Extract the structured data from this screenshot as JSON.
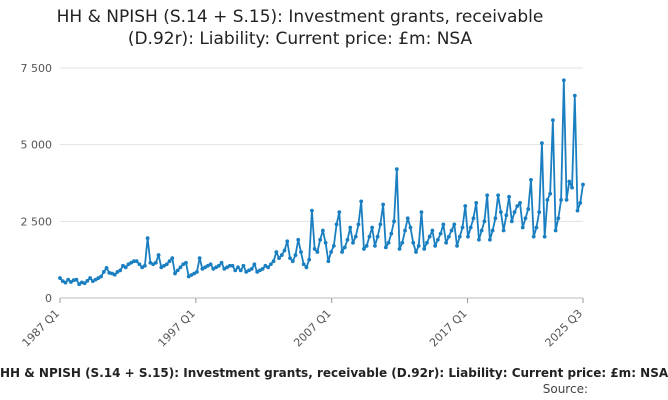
{
  "chart_data": {
    "type": "line",
    "title_lines": [
      "HH & NPISH (S.14 + S.15): Investment grants, receivable",
      "(D.92r): Liability: Current price: £m: NSA"
    ],
    "caption": "HH & NPISH (S.14 + S.15): Investment grants, receivable (D.92r): Liability: Current price: £m: NSA",
    "source_label": "Source:",
    "xlabel": "",
    "ylabel": "",
    "ylim": [
      0,
      7500
    ],
    "yticks": [
      {
        "value": 0,
        "label": "0"
      },
      {
        "value": 2500,
        "label": "2 500"
      },
      {
        "value": 5000,
        "label": "5 000"
      },
      {
        "value": 7500,
        "label": "7 500"
      }
    ],
    "xticks": [
      "1987 Q1",
      "1997 Q1",
      "2007 Q1",
      "2017 Q1",
      "2025 Q3"
    ],
    "grid": true,
    "color": "#1a7fc1",
    "x_start": "1987 Q1",
    "x_end": "2025 Q3",
    "series": [
      {
        "values": [
          650,
          550,
          500,
          600,
          520,
          580,
          600,
          450,
          510,
          480,
          560,
          650,
          550,
          600,
          650,
          700,
          850,
          980,
          820,
          800,
          760,
          850,
          900,
          1050,
          1000,
          1100,
          1150,
          1200,
          1200,
          1100,
          1000,
          1050,
          1950,
          1150,
          1100,
          1150,
          1400,
          1000,
          1050,
          1100,
          1200,
          1300,
          800,
          900,
          1000,
          1100,
          1150,
          700,
          750,
          800,
          850,
          1300,
          950,
          1000,
          1050,
          1100,
          950,
          1000,
          1050,
          1150,
          950,
          1000,
          1050,
          1050,
          900,
          1000,
          900,
          1050,
          850,
          900,
          950,
          1100,
          850,
          900,
          950,
          1050,
          1000,
          1100,
          1200,
          1500,
          1300,
          1400,
          1550,
          1850,
          1300,
          1200,
          1400,
          1900,
          1500,
          1100,
          1000,
          1250,
          2850,
          1600,
          1500,
          1900,
          2200,
          1800,
          1200,
          1500,
          1700,
          2400,
          2800,
          1500,
          1650,
          1900,
          2300,
          1800,
          2000,
          2400,
          3150,
          1600,
          1700,
          2000,
          2300,
          1700,
          2000,
          2400,
          3050,
          1650,
          1800,
          2100,
          2500,
          4200,
          1600,
          1800,
          2200,
          2600,
          2300,
          1800,
          1500,
          1700,
          2800,
          1600,
          1800,
          2000,
          2200,
          1700,
          1900,
          2100,
          2400,
          1800,
          2000,
          2200,
          2400,
          1700,
          2000,
          2300,
          3000,
          2000,
          2300,
          2600,
          3100,
          1900,
          2200,
          2500,
          3350,
          1900,
          2200,
          2600,
          3350,
          2800,
          2200,
          2700,
          3300,
          2500,
          2800,
          3000,
          3100,
          2300,
          2600,
          2900,
          3850,
          2000,
          2300,
          2800,
          5050,
          2000,
          3200,
          3400,
          5800,
          2200,
          2600,
          3200,
          7100,
          3200,
          3800,
          3600,
          6600,
          2850,
          3100,
          3700
        ]
      }
    ]
  }
}
